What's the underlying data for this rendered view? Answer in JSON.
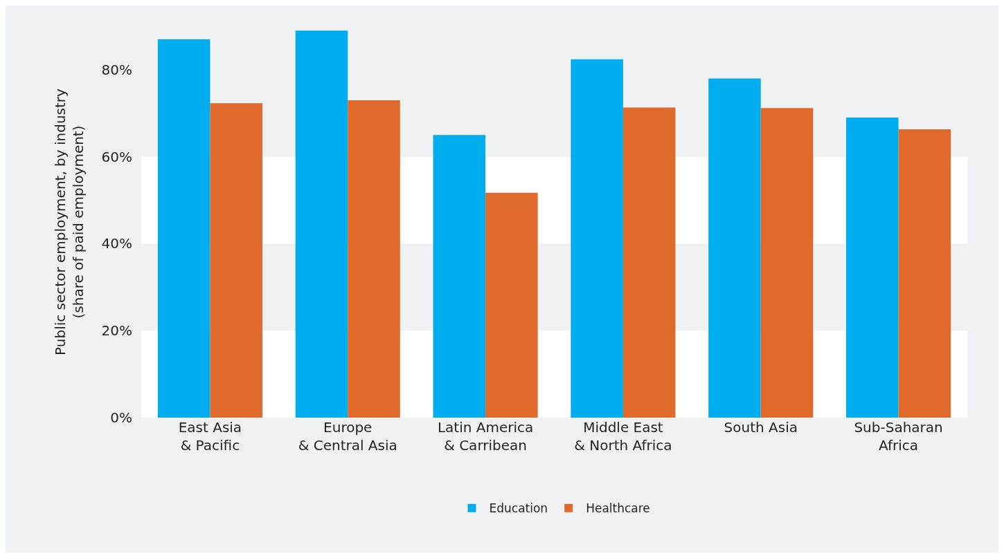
{
  "chart_data": {
    "type": "bar",
    "ylabel": "Public sector employment, by industry\n(share of paid employment)",
    "categories": [
      "East Asia\n& Pacific",
      "Europe\n& Central Asia",
      "Latin America\n& Carribean",
      "Middle East\n& North Africa",
      "South Asia",
      "Sub-Saharan\nAfrica"
    ],
    "series": [
      {
        "name": "Education",
        "color": "#00adef",
        "values": [
          87,
          89,
          65,
          82.4,
          78,
          69
        ]
      },
      {
        "name": "Healthcare",
        "color": "#e06a2c",
        "values": [
          72.3,
          73,
          51.7,
          71.3,
          71.2,
          66.3
        ]
      }
    ],
    "ylim": [
      0,
      90
    ],
    "yticks": [
      {
        "value": 0,
        "label": "0%"
      },
      {
        "value": 20,
        "label": "20%"
      },
      {
        "value": 40,
        "label": "40%"
      },
      {
        "value": 60,
        "label": "60%"
      },
      {
        "value": 80,
        "label": "80%"
      }
    ],
    "bands": [
      {
        "axis": "y",
        "from": 0,
        "to": 20,
        "color": "#ffffff"
      },
      {
        "axis": "y",
        "from": 40,
        "to": 60,
        "color": "#ffffff"
      }
    ],
    "grid": false,
    "legend": "bottom"
  }
}
